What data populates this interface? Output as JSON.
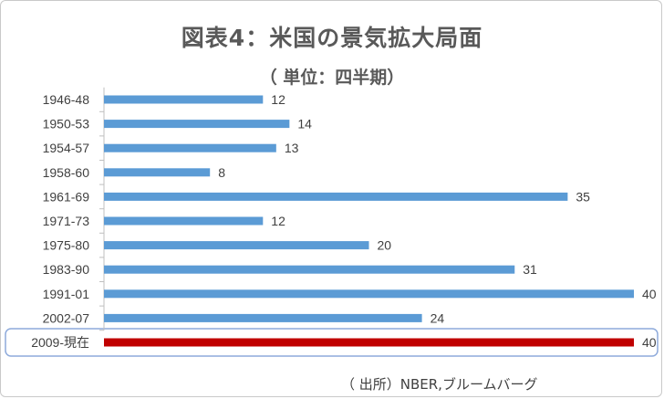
{
  "chart_data": {
    "type": "bar",
    "orientation": "horizontal",
    "title": "図表4：米国の景気拡大局面",
    "subtitle": "（ 単位：四半期）",
    "categories": [
      "1946-48",
      "1950-53",
      "1954-57",
      "1958-60",
      "1961-69",
      "1971-73",
      "1975-80",
      "1983-90",
      "1991-01",
      "2002-07",
      "2009-現在"
    ],
    "values": [
      12,
      14,
      13,
      8,
      35,
      12,
      20,
      31,
      40,
      24,
      40
    ],
    "highlight_category": "2009-現在",
    "xlim": [
      0,
      40
    ],
    "grid": false,
    "data_labels": true
  },
  "colors": {
    "bar": "#5b9bd5",
    "highlight": "#c00000",
    "text": "#404040",
    "title": "#595959",
    "highlight_box": "#8eaadb"
  },
  "source": "（ 出所）NBER,ブルームバーグ"
}
